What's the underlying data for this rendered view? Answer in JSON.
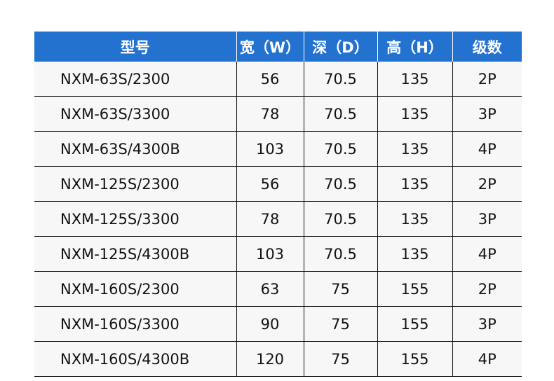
{
  "header_color": "#2472d0",
  "columns": [
    "型号",
    "宽（W）",
    "深（D）",
    "高（H）",
    "级数"
  ],
  "rows": [
    [
      "NXM-63S/2300",
      "56",
      "70.5",
      "135",
      "2P"
    ],
    [
      "NXM-63S/3300",
      "78",
      "70.5",
      "135",
      "3P"
    ],
    [
      "NXM-63S/4300B",
      "103",
      "70.5",
      "135",
      "4P"
    ],
    [
      "NXM-125S/2300",
      "56",
      "70.5",
      "135",
      "2P"
    ],
    [
      "NXM-125S/3300",
      "78",
      "70.5",
      "135",
      "3P"
    ],
    [
      "NXM-125S/4300B",
      "103",
      "70.5",
      "135",
      "4P"
    ],
    [
      "NXM-160S/2300",
      "63",
      "75",
      "155",
      "2P"
    ],
    [
      "NXM-160S/3300",
      "90",
      "75",
      "155",
      "3P"
    ],
    [
      "NXM-160S/4300B",
      "120",
      "75",
      "155",
      "4P"
    ]
  ]
}
